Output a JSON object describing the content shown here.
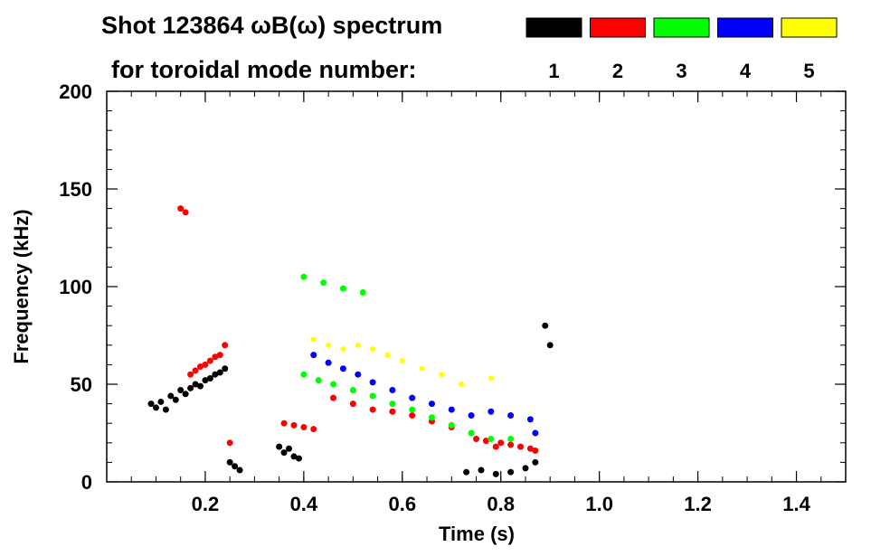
{
  "chart_data": {
    "type": "scatter",
    "title_line1": "Shot 123864 ωB(ω) spectrum",
    "title_line2": "for toroidal mode number:",
    "xlabel": "Time (s)",
    "ylabel": "Frequency (kHz)",
    "xlim": [
      0.0,
      1.5
    ],
    "ylim": [
      0,
      200
    ],
    "xticks": [
      0.2,
      0.4,
      0.6,
      0.8,
      1.0,
      1.2,
      1.4
    ],
    "xtick_labels": [
      "0.2",
      "0.4",
      "0.6",
      "0.8",
      "1.0",
      "1.2",
      "1.4"
    ],
    "yticks": [
      0,
      50,
      100,
      150,
      200
    ],
    "ytick_labels": [
      "0",
      "50",
      "100",
      "150",
      "200"
    ],
    "legend_placement": "top",
    "grid": false,
    "series": [
      {
        "name": "1",
        "color": "#000000",
        "points": [
          [
            0.09,
            40
          ],
          [
            0.1,
            38
          ],
          [
            0.11,
            41
          ],
          [
            0.12,
            37
          ],
          [
            0.13,
            44
          ],
          [
            0.14,
            42
          ],
          [
            0.15,
            47
          ],
          [
            0.16,
            45
          ],
          [
            0.17,
            48
          ],
          [
            0.18,
            50
          ],
          [
            0.19,
            49
          ],
          [
            0.2,
            52
          ],
          [
            0.21,
            53
          ],
          [
            0.22,
            55
          ],
          [
            0.23,
            56
          ],
          [
            0.24,
            58
          ],
          [
            0.25,
            10
          ],
          [
            0.26,
            8
          ],
          [
            0.27,
            6
          ],
          [
            0.35,
            18
          ],
          [
            0.36,
            15
          ],
          [
            0.37,
            17
          ],
          [
            0.38,
            13
          ],
          [
            0.39,
            12
          ],
          [
            0.73,
            5
          ],
          [
            0.76,
            6
          ],
          [
            0.79,
            4
          ],
          [
            0.82,
            5
          ],
          [
            0.85,
            7
          ],
          [
            0.87,
            10
          ],
          [
            0.89,
            80
          ],
          [
            0.9,
            70
          ]
        ]
      },
      {
        "name": "2",
        "color": "#ff0000",
        "points": [
          [
            0.15,
            140
          ],
          [
            0.16,
            138
          ],
          [
            0.17,
            55
          ],
          [
            0.18,
            57
          ],
          [
            0.19,
            59
          ],
          [
            0.2,
            60
          ],
          [
            0.21,
            62
          ],
          [
            0.22,
            64
          ],
          [
            0.23,
            65
          ],
          [
            0.24,
            70
          ],
          [
            0.25,
            20
          ],
          [
            0.36,
            30
          ],
          [
            0.38,
            29
          ],
          [
            0.4,
            28
          ],
          [
            0.42,
            27
          ],
          [
            0.46,
            43
          ],
          [
            0.5,
            40
          ],
          [
            0.54,
            37
          ],
          [
            0.58,
            36
          ],
          [
            0.62,
            34
          ],
          [
            0.66,
            31
          ],
          [
            0.7,
            28
          ],
          [
            0.75,
            22
          ],
          [
            0.77,
            21
          ],
          [
            0.79,
            18
          ],
          [
            0.8,
            20
          ],
          [
            0.82,
            19
          ],
          [
            0.84,
            18
          ],
          [
            0.86,
            17
          ],
          [
            0.87,
            16
          ]
        ]
      },
      {
        "name": "3",
        "color": "#00ff00",
        "points": [
          [
            0.4,
            105
          ],
          [
            0.44,
            102
          ],
          [
            0.48,
            99
          ],
          [
            0.52,
            97
          ],
          [
            0.4,
            55
          ],
          [
            0.43,
            52
          ],
          [
            0.46,
            50
          ],
          [
            0.5,
            47
          ],
          [
            0.54,
            44
          ],
          [
            0.58,
            40
          ],
          [
            0.62,
            37
          ],
          [
            0.66,
            33
          ],
          [
            0.7,
            29
          ],
          [
            0.74,
            25
          ],
          [
            0.78,
            22
          ],
          [
            0.82,
            22
          ]
        ]
      },
      {
        "name": "4",
        "color": "#0000ff",
        "points": [
          [
            0.42,
            65
          ],
          [
            0.45,
            61
          ],
          [
            0.48,
            58
          ],
          [
            0.51,
            55
          ],
          [
            0.54,
            51
          ],
          [
            0.58,
            47
          ],
          [
            0.62,
            43
          ],
          [
            0.66,
            40
          ],
          [
            0.7,
            37
          ],
          [
            0.74,
            34
          ],
          [
            0.78,
            36
          ],
          [
            0.82,
            34
          ],
          [
            0.86,
            32
          ],
          [
            0.87,
            25
          ]
        ]
      },
      {
        "name": "5",
        "color": "#ffff00",
        "points": [
          [
            0.42,
            73
          ],
          [
            0.45,
            70
          ],
          [
            0.48,
            68
          ],
          [
            0.51,
            70
          ],
          [
            0.54,
            68
          ],
          [
            0.57,
            65
          ],
          [
            0.6,
            62
          ],
          [
            0.64,
            58
          ],
          [
            0.68,
            55
          ],
          [
            0.72,
            50
          ],
          [
            0.78,
            53
          ]
        ]
      }
    ]
  }
}
